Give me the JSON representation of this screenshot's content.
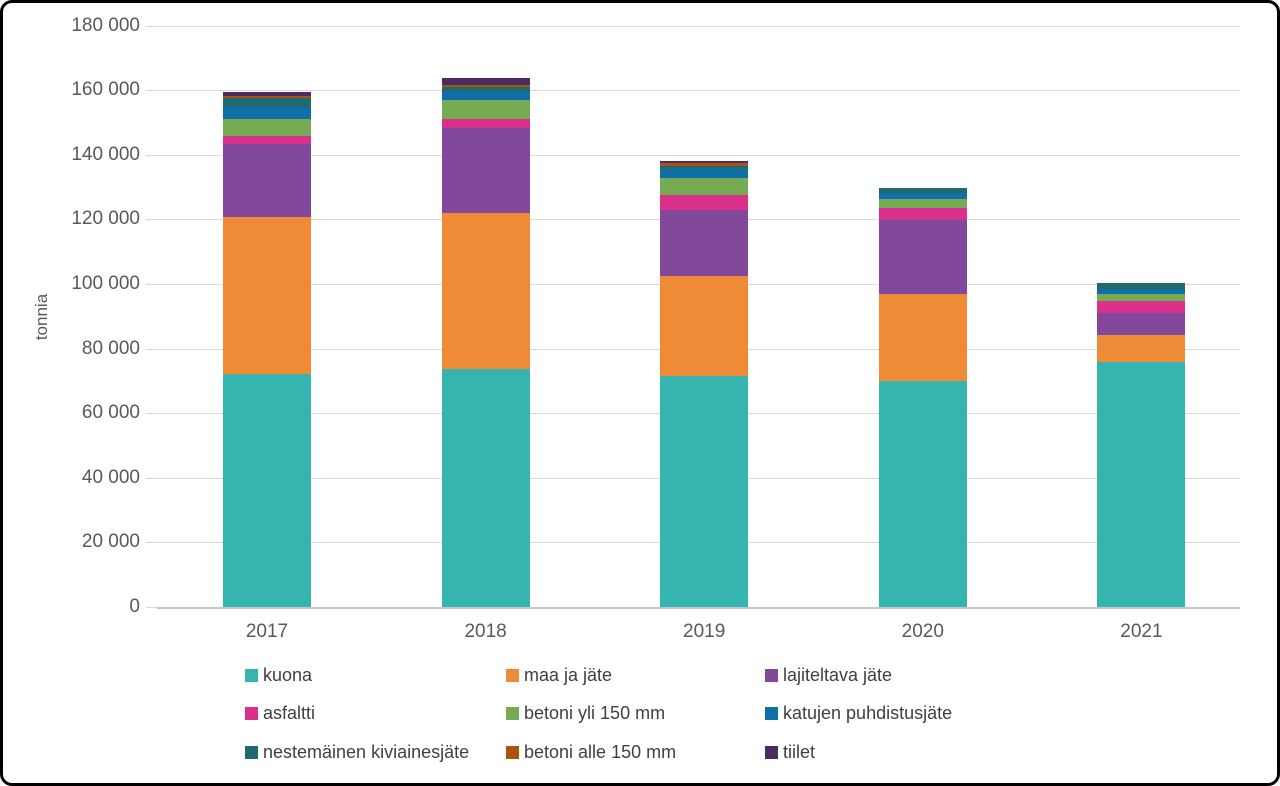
{
  "chart_data": {
    "type": "bar",
    "stacked": true,
    "ylabel": "tonnia",
    "xlabel": "",
    "ylim": [
      0,
      180000
    ],
    "grid": true,
    "legend_position": "bottom",
    "categories": [
      "2017",
      "2018",
      "2019",
      "2020",
      "2021"
    ],
    "y_tick_labels": [
      "0",
      "20 000",
      "40 000",
      "60 000",
      "80 000",
      "100 000",
      "120 000",
      "140 000",
      "160 000",
      "180 000"
    ],
    "y_tick_values": [
      0,
      20000,
      40000,
      60000,
      80000,
      100000,
      120000,
      140000,
      160000,
      180000
    ],
    "series": [
      {
        "name": "kuona",
        "color": "#36b5b0",
        "values": [
          72100,
          73700,
          71600,
          70000,
          75800
        ]
      },
      {
        "name": "maa ja jäte",
        "color": "#ef8b36",
        "values": [
          48600,
          48400,
          30900,
          26800,
          8400
        ]
      },
      {
        "name": "lajiteltava jäte",
        "color": "#82489c",
        "values": [
          22600,
          26100,
          20400,
          22900,
          6800
        ]
      },
      {
        "name": "asfaltti",
        "color": "#d9308c",
        "values": [
          2500,
          2800,
          4600,
          3900,
          3600
        ]
      },
      {
        "name": "betoni yli 150 mm",
        "color": "#76ab53",
        "values": [
          5300,
          6000,
          5400,
          2700,
          2400
        ]
      },
      {
        "name": "katujen puhdistusjäte",
        "color": "#0f6fa8",
        "values": [
          3700,
          2600,
          2600,
          1800,
          1500
        ]
      },
      {
        "name": "nestemäinen kiviainesjäte",
        "color": "#20696d",
        "values": [
          2700,
          1250,
          1000,
          1700,
          1750
        ]
      },
      {
        "name": "betoni alle 150 mm",
        "color": "#a8540f",
        "values": [
          600,
          850,
          830,
          0,
          0
        ]
      },
      {
        "name": "tiilet",
        "color": "#4c2a63",
        "values": [
          1200,
          2050,
          830,
          0,
          0
        ]
      }
    ],
    "colors": {
      "gridline": "#d9d9d9",
      "axis_line": "#c6c6c6",
      "axis_text": "#595959",
      "legend_text": "#404040"
    }
  }
}
